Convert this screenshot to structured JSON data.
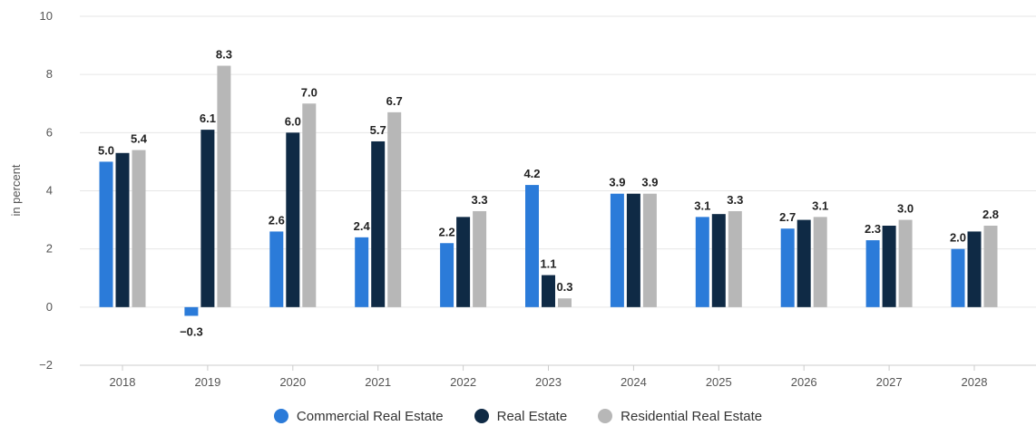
{
  "chart_data": {
    "type": "bar",
    "title": "",
    "xlabel": "",
    "ylabel": "in percent",
    "ylim": [
      -2,
      10
    ],
    "yticks": [
      -2,
      0,
      2,
      4,
      6,
      8,
      10
    ],
    "grid": true,
    "legend_position": "bottom",
    "categories": [
      "2018",
      "2019",
      "2020",
      "2021",
      "2022",
      "2023",
      "2024",
      "2025",
      "2026",
      "2027",
      "2028"
    ],
    "series": [
      {
        "name": "Commercial Real Estate",
        "color": "#2b7bd9",
        "values": [
          5.0,
          -0.3,
          2.6,
          2.4,
          2.2,
          4.2,
          3.9,
          3.1,
          2.7,
          2.3,
          2.0
        ]
      },
      {
        "name": "Real Estate",
        "color": "#0f2a45",
        "values": [
          5.3,
          6.1,
          6.0,
          5.7,
          3.1,
          1.1,
          3.9,
          3.2,
          3.0,
          2.8,
          2.6
        ]
      },
      {
        "name": "Residential Real Estate",
        "color": "#b7b7b7",
        "values": [
          5.4,
          8.3,
          7.0,
          6.7,
          3.3,
          0.3,
          3.9,
          3.3,
          3.1,
          3.0,
          2.8
        ]
      }
    ],
    "data_labels": [
      {
        "category": "2018",
        "series": "Commercial Real Estate",
        "text": "5.0"
      },
      {
        "category": "2018",
        "series": "Residential Real Estate",
        "text": "5.4"
      },
      {
        "category": "2019",
        "series": "Commercial Real Estate",
        "text": "-0.3"
      },
      {
        "category": "2019",
        "series": "Real Estate",
        "text": "6.1"
      },
      {
        "category": "2019",
        "series": "Residential Real Estate",
        "text": "8.3"
      },
      {
        "category": "2020",
        "series": "Commercial Real Estate",
        "text": "2.6"
      },
      {
        "category": "2020",
        "series": "Real Estate",
        "text": "6.0"
      },
      {
        "category": "2020",
        "series": "Residential Real Estate",
        "text": "7.0"
      },
      {
        "category": "2021",
        "series": "Commercial Real Estate",
        "text": "2.4"
      },
      {
        "category": "2021",
        "series": "Real Estate",
        "text": "5.7"
      },
      {
        "category": "2021",
        "series": "Residential Real Estate",
        "text": "6.7"
      },
      {
        "category": "2022",
        "series": "Commercial Real Estate",
        "text": "2.2"
      },
      {
        "category": "2022",
        "series": "Residential Real Estate",
        "text": "3.3"
      },
      {
        "category": "2023",
        "series": "Commercial Real Estate",
        "text": "4.2"
      },
      {
        "category": "2023",
        "series": "Real Estate",
        "text": "1.1"
      },
      {
        "category": "2023",
        "series": "Residential Real Estate",
        "text": "0.3"
      },
      {
        "category": "2024",
        "series": "Commercial Real Estate",
        "text": "3.9"
      },
      {
        "category": "2024",
        "series": "Residential Real Estate",
        "text": "3.9"
      },
      {
        "category": "2025",
        "series": "Commercial Real Estate",
        "text": "3.1"
      },
      {
        "category": "2025",
        "series": "Residential Real Estate",
        "text": "3.3"
      },
      {
        "category": "2026",
        "series": "Commercial Real Estate",
        "text": "2.7"
      },
      {
        "category": "2026",
        "series": "Residential Real Estate",
        "text": "3.1"
      },
      {
        "category": "2027",
        "series": "Commercial Real Estate",
        "text": "2.3"
      },
      {
        "category": "2027",
        "series": "Residential Real Estate",
        "text": "3.0"
      },
      {
        "category": "2028",
        "series": "Commercial Real Estate",
        "text": "2.0"
      },
      {
        "category": "2028",
        "series": "Residential Real Estate",
        "text": "2.8"
      }
    ]
  },
  "legend": {
    "items": [
      {
        "label": "Commercial Real Estate",
        "color": "#2b7bd9"
      },
      {
        "label": "Real Estate",
        "color": "#0f2a45"
      },
      {
        "label": "Residential Real Estate",
        "color": "#b7b7b7"
      }
    ]
  }
}
